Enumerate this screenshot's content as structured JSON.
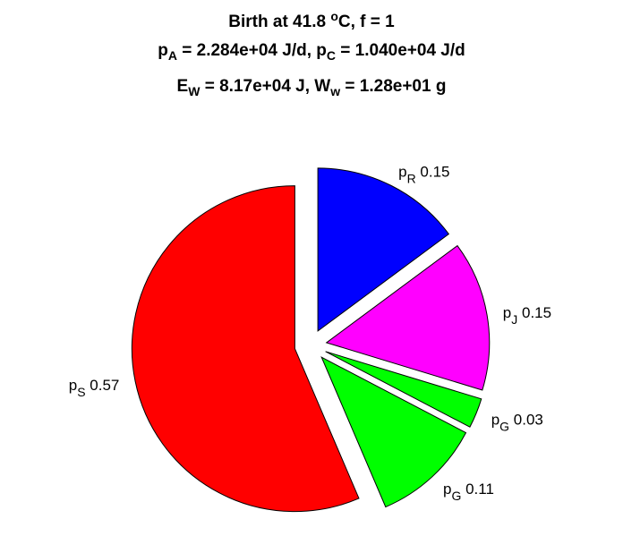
{
  "title": {
    "line1": {
      "text_a": "Birth at 41.8 ",
      "sup": "o",
      "text_b": "C, f = 1"
    },
    "line2": {
      "p_a": "p",
      "sub_a": "A",
      "val_a": " = 2.284e+04 J/d, ",
      "p_c": "p",
      "sub_c": "C",
      "val_c": " = 1.040e+04 J/d"
    },
    "line3": {
      "e": "E",
      "sub_e": "W",
      "val_e": " = 8.17e+04 J, ",
      "w": "W",
      "sub_w": "w",
      "val_w": " = 1.28e+01 g"
    }
  },
  "chart_data": {
    "type": "pie",
    "title": "Birth at 41.8 °C, f = 1; p_A = 2.284e+04 J/d, p_C = 1.040e+04 J/d; E_W = 8.17e+04 J, W_w = 1.28e+01 g",
    "slices": [
      {
        "base": "p",
        "sub": "R",
        "value": 0.15,
        "value_label": "0.15",
        "color": "#0000ff",
        "exploded": true
      },
      {
        "base": "p",
        "sub": "J",
        "value": 0.15,
        "value_label": "0.15",
        "color": "#ff00ff",
        "exploded": true
      },
      {
        "base": "p",
        "sub": "G",
        "value": 0.03,
        "value_label": "0.03",
        "color": "#00ff00",
        "exploded": true
      },
      {
        "base": "p",
        "sub": "G",
        "value": 0.11,
        "value_label": "0.11",
        "color": "#00ff00",
        "exploded": true
      },
      {
        "base": "p",
        "sub": "S",
        "value": 0.57,
        "value_label": "0.57",
        "color": "#ff0000",
        "exploded": true
      }
    ]
  }
}
